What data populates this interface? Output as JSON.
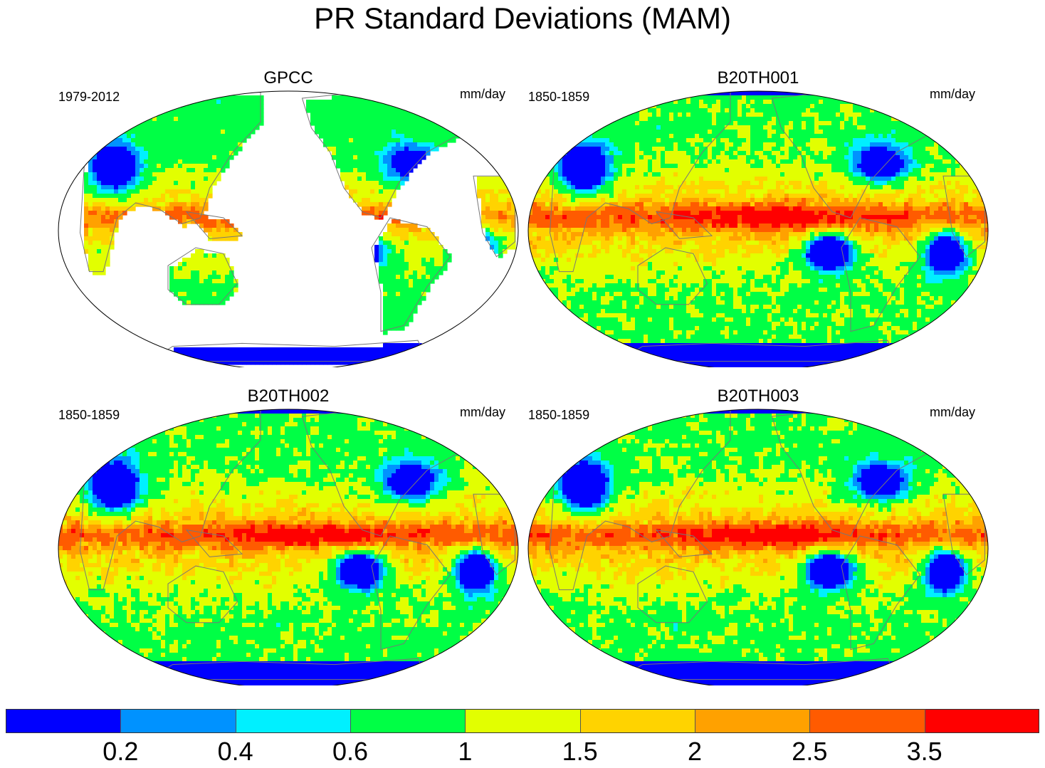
{
  "title": "PR Standard Deviations (MAM)",
  "chart_data": {
    "type": "heatmap",
    "title": "PR Standard Deviations (MAM)",
    "projection": "Robinson, centered on Pacific",
    "colorbar": {
      "labels": [
        "0.2",
        "0.4",
        "0.6",
        "1",
        "1.5",
        "2",
        "2.5",
        "3.5"
      ],
      "levels": [
        0.2,
        0.4,
        0.6,
        1,
        1.5,
        2,
        2.5,
        3.5
      ],
      "colors": [
        "#0000ff",
        "#0092ff",
        "#00f0ff",
        "#00ff45",
        "#e2ff00",
        "#ffd300",
        "#ffa100",
        "#ff5b00",
        "#ff0000"
      ]
    },
    "panels": [
      {
        "name": "GPCC",
        "period": "1979-2012",
        "units": "mm/day",
        "coverage": "land"
      },
      {
        "name": "B20TH001",
        "period": "1850-1859",
        "units": "mm/day",
        "coverage": "global"
      },
      {
        "name": "B20TH002",
        "period": "1850-1859",
        "units": "mm/day",
        "coverage": "global"
      },
      {
        "name": "B20TH003",
        "period": "1850-1859",
        "units": "mm/day",
        "coverage": "global"
      }
    ]
  }
}
